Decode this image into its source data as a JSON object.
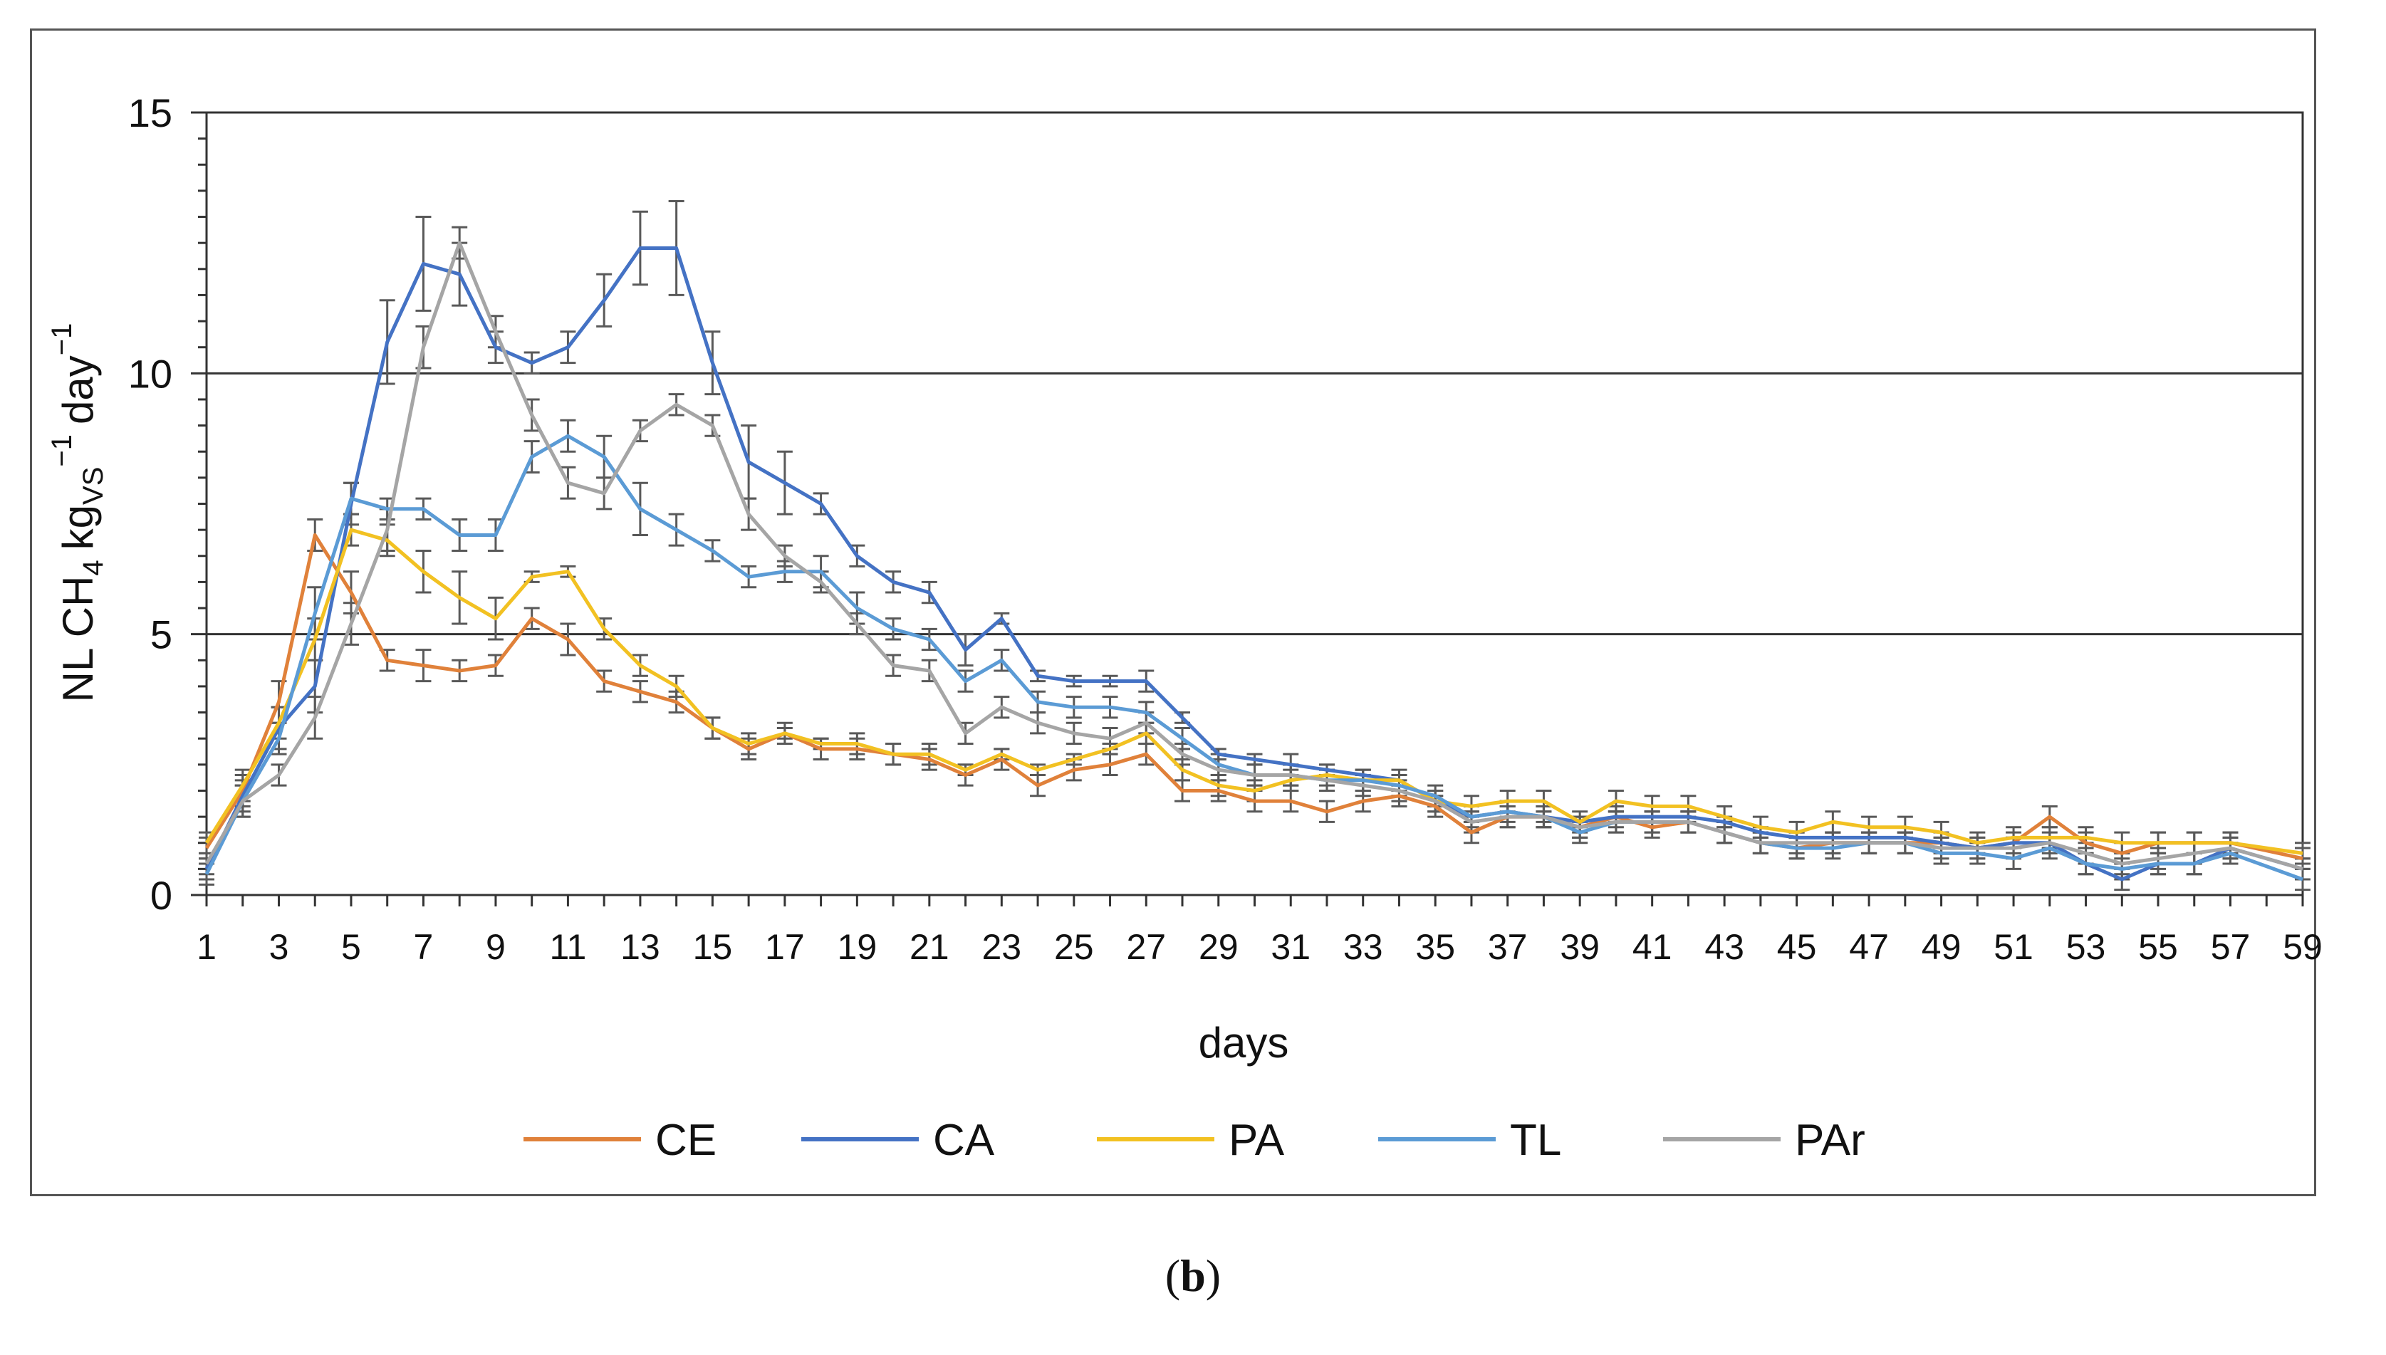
{
  "chart_data": {
    "type": "line",
    "title": "",
    "xlabel": "days",
    "ylabel": {
      "prefix": "NL CH",
      "sub_ch": "4",
      "kg": "kg",
      "sub_vs": "VS",
      "sup1": "−1",
      "day": "day",
      "sup2": "−1"
    },
    "ylim": [
      0,
      15
    ],
    "yticks": [
      0,
      5,
      10,
      15
    ],
    "xlim": [
      1,
      59
    ],
    "xticks": [
      1,
      3,
      5,
      7,
      9,
      11,
      13,
      15,
      17,
      19,
      21,
      23,
      25,
      27,
      29,
      31,
      33,
      35,
      37,
      39,
      41,
      43,
      45,
      47,
      49,
      51,
      53,
      55,
      57,
      59
    ],
    "gridlines": [
      5,
      10
    ],
    "legend_position": "bottom",
    "x": [
      1,
      2,
      3,
      4,
      5,
      6,
      7,
      8,
      9,
      10,
      11,
      12,
      13,
      14,
      15,
      16,
      17,
      18,
      19,
      20,
      21,
      22,
      23,
      24,
      25,
      26,
      27,
      28,
      29,
      30,
      31,
      32,
      33,
      34,
      35,
      36,
      37,
      38,
      39,
      40,
      41,
      42,
      43,
      44,
      45,
      46,
      47,
      48,
      49,
      50,
      51,
      52,
      53,
      54,
      55,
      56,
      57,
      59
    ],
    "series": [
      {
        "name": "CE",
        "color": "#E0813A",
        "values": [
          0.9,
          2.0,
          3.7,
          6.9,
          5.8,
          4.5,
          4.4,
          4.3,
          4.4,
          5.3,
          4.9,
          4.1,
          3.9,
          3.7,
          3.2,
          2.8,
          3.1,
          2.8,
          2.8,
          2.7,
          2.6,
          2.3,
          2.6,
          2.1,
          2.4,
          2.5,
          2.7,
          2.0,
          2.0,
          1.8,
          1.8,
          1.6,
          1.8,
          1.9,
          1.7,
          1.2,
          1.5,
          1.5,
          1.3,
          1.5,
          1.3,
          1.4,
          1.2,
          1.0,
          0.9,
          1.0,
          1.0,
          1.0,
          1.0,
          0.9,
          1.0,
          1.5,
          1.0,
          0.8,
          1.0,
          1.0,
          1.0,
          0.7
        ],
        "errors": [
          0.2,
          0.3,
          0.4,
          0.3,
          0.4,
          0.2,
          0.3,
          0.2,
          0.2,
          0.2,
          0.3,
          0.2,
          0.2,
          0.2,
          0.2,
          0.2,
          0.2,
          0.2,
          0.2,
          0.2,
          0.2,
          0.2,
          0.2,
          0.2,
          0.2,
          0.2,
          0.2,
          0.2,
          0.2,
          0.2,
          0.2,
          0.2,
          0.2,
          0.2,
          0.2,
          0.2,
          0.2,
          0.2,
          0.2,
          0.2,
          0.2,
          0.2,
          0.2,
          0.2,
          0.2,
          0.2,
          0.2,
          0.2,
          0.2,
          0.2,
          0.2,
          0.2,
          0.2,
          0.2,
          0.2,
          0.2,
          0.2,
          0.2
        ]
      },
      {
        "name": "CA",
        "color": "#4472C4",
        "values": [
          0.5,
          1.9,
          3.2,
          4.0,
          7.5,
          10.6,
          12.1,
          11.9,
          10.5,
          10.2,
          10.5,
          11.4,
          12.4,
          12.4,
          10.2,
          8.3,
          7.9,
          7.5,
          6.5,
          6.0,
          5.8,
          4.7,
          5.3,
          4.2,
          4.1,
          4.1,
          4.1,
          3.4,
          2.7,
          2.6,
          2.5,
          2.4,
          2.3,
          2.2,
          1.8,
          1.5,
          1.6,
          1.5,
          1.4,
          1.5,
          1.5,
          1.5,
          1.4,
          1.2,
          1.1,
          1.1,
          1.1,
          1.1,
          1.0,
          0.9,
          1.0,
          1.0,
          0.6,
          0.3,
          0.6,
          0.6,
          0.9,
          0.5
        ],
        "errors": [
          0.2,
          0.3,
          0.4,
          0.5,
          0.4,
          0.8,
          0.9,
          0.6,
          0.3,
          0.2,
          0.3,
          0.5,
          0.7,
          0.9,
          0.6,
          0.7,
          0.6,
          0.2,
          0.2,
          0.2,
          0.2,
          0.3,
          0.1,
          0.1,
          0.1,
          0.1,
          0.2,
          0.1,
          0.1,
          0.1,
          0.2,
          0.1,
          0.1,
          0.1,
          0.1,
          0.1,
          0.1,
          0.1,
          0.1,
          0.1,
          0.1,
          0.1,
          0.1,
          0.1,
          0.1,
          0.1,
          0.1,
          0.1,
          0.1,
          0.1,
          0.1,
          0.1,
          0.2,
          0.2,
          0.2,
          0.2,
          0.2,
          0.2
        ]
      },
      {
        "name": "PA",
        "color": "#F2C122",
        "values": [
          1.0,
          2.1,
          3.3,
          4.9,
          7.0,
          6.8,
          6.2,
          5.7,
          5.3,
          6.1,
          6.2,
          5.1,
          4.4,
          4.0,
          3.2,
          2.9,
          3.1,
          2.9,
          2.9,
          2.7,
          2.7,
          2.4,
          2.7,
          2.4,
          2.6,
          2.8,
          3.1,
          2.4,
          2.1,
          2.0,
          2.2,
          2.3,
          2.2,
          2.2,
          1.8,
          1.7,
          1.8,
          1.8,
          1.4,
          1.8,
          1.7,
          1.7,
          1.5,
          1.3,
          1.2,
          1.4,
          1.3,
          1.3,
          1.2,
          1.0,
          1.1,
          1.1,
          1.1,
          1.0,
          1.0,
          1.0,
          1.0,
          0.8
        ],
        "errors": [
          0.2,
          0.3,
          0.3,
          0.4,
          0.3,
          0.3,
          0.4,
          0.5,
          0.4,
          0.1,
          0.1,
          0.2,
          0.2,
          0.2,
          0.2,
          0.2,
          0.1,
          0.1,
          0.2,
          0.2,
          0.2,
          0.1,
          0.1,
          0.1,
          0.1,
          0.1,
          0.2,
          0.2,
          0.2,
          0.2,
          0.2,
          0.2,
          0.2,
          0.2,
          0.2,
          0.2,
          0.2,
          0.2,
          0.2,
          0.2,
          0.2,
          0.2,
          0.2,
          0.2,
          0.2,
          0.2,
          0.2,
          0.2,
          0.2,
          0.2,
          0.2,
          0.2,
          0.2,
          0.2,
          0.2,
          0.2,
          0.2,
          0.2
        ]
      },
      {
        "name": "TL",
        "color": "#5B9BD5",
        "values": [
          0.4,
          1.8,
          3.0,
          5.4,
          7.6,
          7.4,
          7.4,
          6.9,
          6.9,
          8.4,
          8.8,
          8.4,
          7.4,
          7.0,
          6.6,
          6.1,
          6.2,
          6.2,
          5.5,
          5.1,
          4.9,
          4.1,
          4.5,
          3.7,
          3.6,
          3.6,
          3.5,
          3.0,
          2.5,
          2.3,
          2.3,
          2.2,
          2.2,
          2.1,
          1.9,
          1.5,
          1.6,
          1.5,
          1.2,
          1.4,
          1.4,
          1.4,
          1.2,
          1.0,
          0.9,
          0.9,
          1.0,
          1.0,
          0.8,
          0.8,
          0.7,
          0.9,
          0.6,
          0.5,
          0.6,
          0.6,
          0.8,
          0.3
        ],
        "errors": [
          0.2,
          0.3,
          0.3,
          0.5,
          0.3,
          0.2,
          0.2,
          0.3,
          0.3,
          0.3,
          0.3,
          0.4,
          0.5,
          0.3,
          0.2,
          0.2,
          0.2,
          0.3,
          0.3,
          0.2,
          0.2,
          0.2,
          0.2,
          0.2,
          0.2,
          0.2,
          0.2,
          0.2,
          0.2,
          0.2,
          0.2,
          0.2,
          0.2,
          0.2,
          0.2,
          0.2,
          0.2,
          0.2,
          0.2,
          0.2,
          0.2,
          0.2,
          0.2,
          0.2,
          0.2,
          0.2,
          0.2,
          0.2,
          0.2,
          0.2,
          0.2,
          0.2,
          0.2,
          0.2,
          0.2,
          0.2,
          0.2,
          0.2
        ]
      },
      {
        "name": "PAr",
        "color": "#A5A5A5",
        "values": [
          0.6,
          1.8,
          2.3,
          3.4,
          5.2,
          7.0,
          10.5,
          12.5,
          10.8,
          9.2,
          7.9,
          7.7,
          8.9,
          9.4,
          9.0,
          7.3,
          6.5,
          6.0,
          5.2,
          4.4,
          4.3,
          3.1,
          3.6,
          3.3,
          3.1,
          3.0,
          3.3,
          2.7,
          2.4,
          2.3,
          2.3,
          2.2,
          2.1,
          2.0,
          1.8,
          1.4,
          1.5,
          1.5,
          1.3,
          1.4,
          1.4,
          1.4,
          1.2,
          1.0,
          1.0,
          1.0,
          1.0,
          1.0,
          0.9,
          0.9,
          0.9,
          1.0,
          0.8,
          0.6,
          0.7,
          0.8,
          0.9,
          0.5
        ],
        "errors": [
          0.2,
          0.3,
          0.2,
          0.4,
          0.4,
          0.4,
          0.4,
          0.3,
          0.3,
          0.3,
          0.3,
          0.3,
          0.2,
          0.2,
          0.2,
          0.3,
          0.2,
          0.2,
          0.2,
          0.2,
          0.2,
          0.2,
          0.2,
          0.2,
          0.2,
          0.2,
          0.2,
          0.2,
          0.2,
          0.2,
          0.2,
          0.2,
          0.2,
          0.2,
          0.2,
          0.2,
          0.2,
          0.2,
          0.2,
          0.2,
          0.2,
          0.2,
          0.2,
          0.2,
          0.2,
          0.2,
          0.2,
          0.2,
          0.2,
          0.2,
          0.2,
          0.2,
          0.2,
          0.2,
          0.2,
          0.2,
          0.2,
          0.2
        ]
      }
    ]
  },
  "caption": {
    "open": "(",
    "letter": "b",
    "close": ")"
  }
}
